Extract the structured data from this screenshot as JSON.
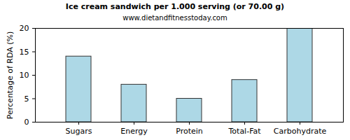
{
  "chart_data": {
    "type": "bar",
    "title": "Ice cream sandwich per 1.000 serving (or 70.00 g)",
    "subtitle": "www.dietandfitnesstoday.com",
    "y_label": "Percentage of RDA (%)",
    "categories": [
      "Sugars",
      "Energy",
      "Protein",
      "Total-Fat",
      "Carbohydrate"
    ],
    "values": [
      14,
      8,
      5,
      9,
      20
    ],
    "color": "#add8e6",
    "ylim": [
      0,
      20
    ],
    "yticks": [
      0,
      5,
      10,
      15,
      20
    ],
    "grid": false
  }
}
